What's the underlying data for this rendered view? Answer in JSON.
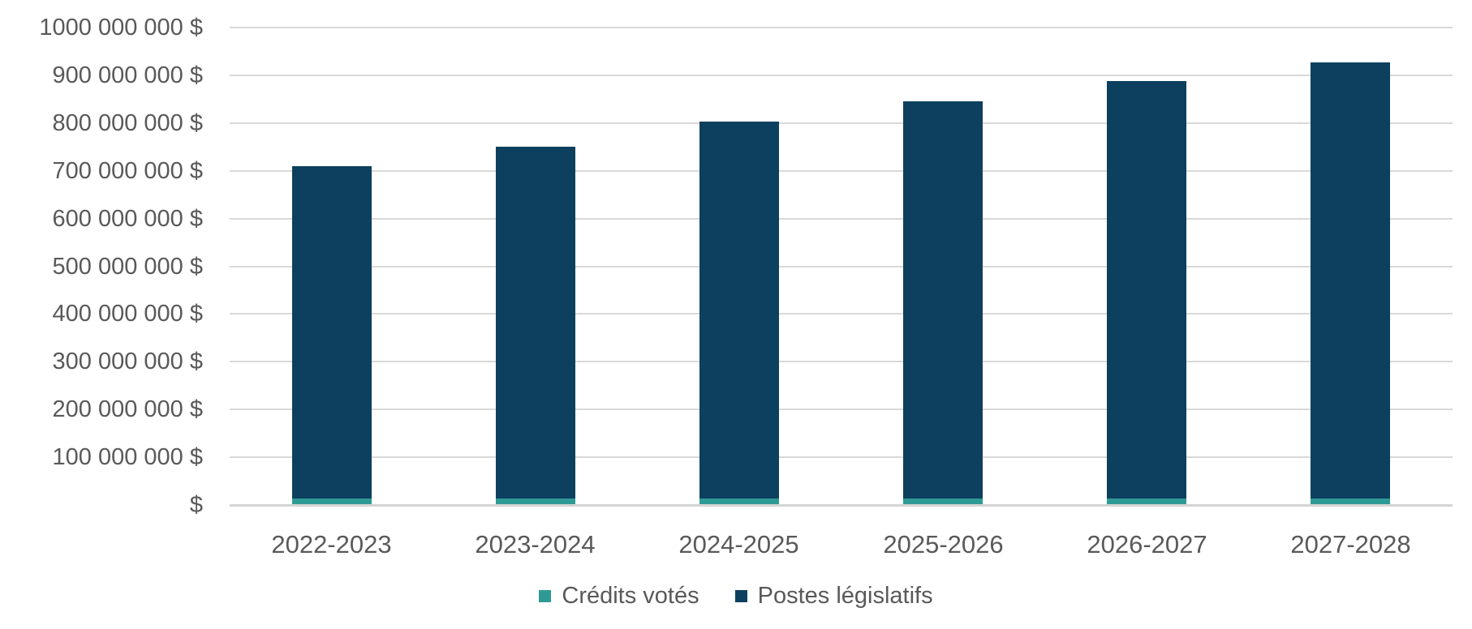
{
  "chart_data": {
    "type": "bar",
    "stacked": true,
    "title": "",
    "xlabel": "",
    "ylabel": "",
    "categories": [
      "2022-2023",
      "2023-2024",
      "2024-2025",
      "2025-2026",
      "2026-2027",
      "2027-2028"
    ],
    "series": [
      {
        "name": "Crédits votés",
        "color": "#2E9A96",
        "values": [
          12000000,
          12000000,
          12000000,
          12000000,
          12000000,
          12000000
        ]
      },
      {
        "name": "Postes législatifs",
        "color": "#0D405E",
        "values": [
          696000000,
          736000000,
          790000000,
          832000000,
          874000000,
          914000000
        ]
      }
    ],
    "ylim": [
      0,
      1000000000
    ],
    "yticks": [
      {
        "value": 0,
        "label": "$"
      },
      {
        "value": 100000000,
        "label": "100 000 000 $"
      },
      {
        "value": 200000000,
        "label": "200 000 000 $"
      },
      {
        "value": 300000000,
        "label": "300 000 000 $"
      },
      {
        "value": 400000000,
        "label": "400 000 000 $"
      },
      {
        "value": 500000000,
        "label": "500 000 000 $"
      },
      {
        "value": 600000000,
        "label": "600 000 000 $"
      },
      {
        "value": 700000000,
        "label": "700 000 000 $"
      },
      {
        "value": 800000000,
        "label": "800 000 000 $"
      },
      {
        "value": 900000000,
        "label": "900 000 000 $"
      },
      {
        "value": 1000000000,
        "label": "1000 000 000 $"
      }
    ],
    "grid": true,
    "legend_position": "bottom",
    "colors": {
      "axis_text": "#595959",
      "gridline": "#D9D9D9",
      "background": "#FFFFFF"
    }
  }
}
